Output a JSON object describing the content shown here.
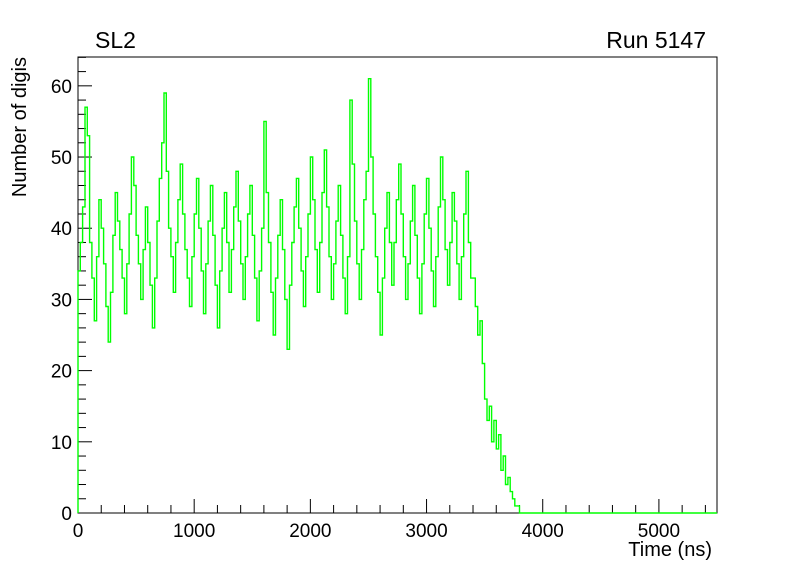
{
  "header": {
    "title_left": "SL2",
    "title_right": "Run 5147"
  },
  "colors": {
    "background": "#ffffff",
    "axis": "#000000",
    "series": "#00ff00"
  },
  "chart_data": {
    "type": "line",
    "style": "step-histogram",
    "title": "SL2",
    "annotation": "Run 5147",
    "xlabel": "Time (ns)",
    "ylabel": "Number of digis",
    "xlim": [
      0,
      5500
    ],
    "ylim": [
      0,
      64.05
    ],
    "xticks": [
      0,
      1000,
      2000,
      3000,
      4000,
      5000
    ],
    "x_minor_step": 200,
    "yticks": [
      0,
      10,
      20,
      30,
      40,
      50,
      60
    ],
    "y_minor_step": 2,
    "grid": false,
    "legend_position": "none",
    "series_color": "#00ff00",
    "x_start": 0,
    "bin_width_ns": 20,
    "values": [
      34,
      38,
      43,
      57,
      53,
      38,
      33,
      27,
      36,
      44,
      40,
      35,
      29,
      24,
      31,
      39,
      45,
      41,
      37,
      33,
      28,
      35,
      42,
      50,
      46,
      39,
      35,
      30,
      37,
      43,
      38,
      32,
      26,
      33,
      41,
      47,
      52,
      59,
      48,
      40,
      36,
      31,
      38,
      44,
      49,
      42,
      37,
      33,
      29,
      36,
      42,
      47,
      40,
      34,
      28,
      35,
      41,
      46,
      39,
      32,
      26,
      34,
      40,
      45,
      38,
      31,
      37,
      43,
      48,
      41,
      35,
      30,
      36,
      42,
      46,
      39,
      33,
      27,
      34,
      40,
      55,
      45,
      38,
      31,
      25,
      33,
      39,
      44,
      37,
      30,
      23,
      32,
      38,
      43,
      47,
      40,
      34,
      29,
      36,
      42,
      50,
      44,
      37,
      31,
      38,
      45,
      51,
      43,
      36,
      30,
      35,
      41,
      46,
      39,
      33,
      28,
      36,
      58,
      49,
      41,
      35,
      30,
      37,
      44,
      48,
      61,
      50,
      42,
      36,
      31,
      25,
      33,
      40,
      45,
      38,
      32,
      38,
      44,
      49,
      42,
      36,
      30,
      35,
      41,
      46,
      39,
      33,
      28,
      35,
      42,
      47,
      40,
      34,
      29,
      36,
      43,
      50,
      44,
      37,
      32,
      38,
      45,
      41,
      35,
      30,
      36,
      42,
      48,
      38,
      33,
      33,
      29,
      25,
      27,
      21,
      16,
      13,
      15,
      10,
      13,
      9,
      11,
      6,
      8,
      4,
      5,
      3,
      2,
      1,
      1,
      0,
      0,
      0,
      0,
      0,
      0,
      0,
      0,
      0,
      0,
      0,
      0,
      0,
      0,
      0,
      0,
      0,
      0,
      0,
      0,
      0,
      0,
      0,
      0,
      0,
      0,
      0,
      0,
      0,
      0,
      0,
      0,
      0,
      0,
      0,
      0,
      0,
      0,
      0,
      0,
      0,
      0,
      0,
      0,
      0,
      0,
      0,
      0,
      0,
      0,
      0,
      0,
      0,
      0,
      0,
      0,
      0,
      0,
      0,
      0,
      0,
      0,
      0,
      0,
      0,
      0,
      0,
      0,
      0,
      0,
      0,
      0,
      0,
      0,
      0,
      0,
      0,
      0,
      0,
      0,
      0,
      0,
      0,
      0,
      0
    ]
  }
}
